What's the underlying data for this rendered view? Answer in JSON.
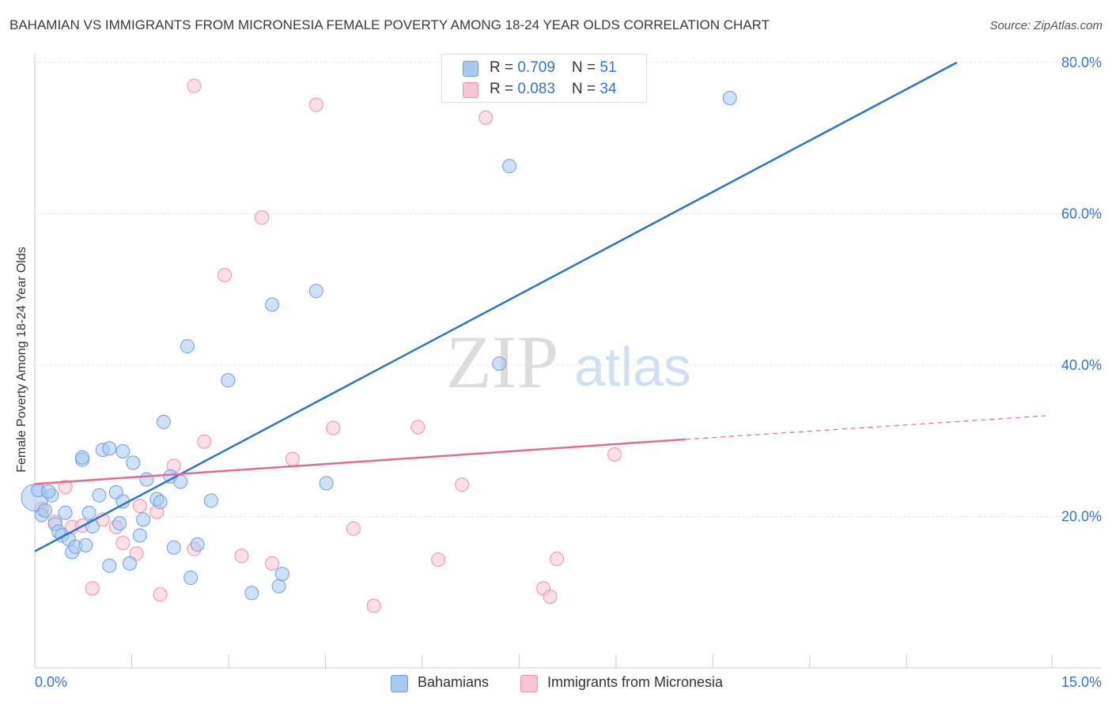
{
  "title": "BAHAMIAN VS IMMIGRANTS FROM MICRONESIA FEMALE POVERTY AMONG 18-24 YEAR OLDS CORRELATION CHART",
  "source": "Source: ZipAtlas.com",
  "watermark": {
    "zip": "ZIP",
    "atlas": "atlas"
  },
  "legend_top": {
    "rows": [
      {
        "r_label": "R = ",
        "r_value": "0.709",
        "n_label": "N = ",
        "n_value": "51",
        "color": "#a9c8f0",
        "border": "#6b9fe0"
      },
      {
        "r_label": "R = ",
        "r_value": "0.083",
        "n_label": "N = ",
        "n_value": "34",
        "color": "#f9c4d4",
        "border": "#ec8fb0"
      }
    ]
  },
  "legend_bottom": [
    {
      "label": "Bahamians",
      "color": "#a9c8f0",
      "border": "#6b9fe0"
    },
    {
      "label": "Immigrants from Micronesia",
      "color": "#f9c4d4",
      "border": "#ec8fb0"
    }
  ],
  "chart_data": {
    "type": "scatter",
    "xlabel": "",
    "ylabel": "Female Poverty Among 18-24 Year Olds",
    "xlim": [
      0,
      15
    ],
    "ylim": [
      0,
      80
    ],
    "x_tick_labels": [
      {
        "value": 0,
        "label": "0.0%"
      },
      {
        "value": 15,
        "label": "15.0%"
      }
    ],
    "x_minor_ticks": [
      1.429,
      2.857,
      4.286,
      5.714,
      7.143,
      8.571,
      10.0,
      11.429,
      12.857
    ],
    "y_ticks": [
      {
        "value": 20,
        "label": "20.0%"
      },
      {
        "value": 40,
        "label": "40.0%"
      },
      {
        "value": 60,
        "label": "60.0%"
      },
      {
        "value": 80,
        "label": "80.0%"
      }
    ],
    "grid": true,
    "series": [
      {
        "name": "Bahamians",
        "color": "#a9c8f0",
        "stroke": "#6b9fe0",
        "trend": {
          "x0": 0,
          "y0": 15.4,
          "x1": 13.6,
          "y1": 80,
          "color": "#2b72cc",
          "dashed_extension": false
        },
        "points": [
          [
            0.0,
            22.5
          ],
          [
            0.1,
            20.2
          ],
          [
            0.15,
            20.8
          ],
          [
            0.25,
            22.8
          ],
          [
            0.3,
            19.0
          ],
          [
            0.35,
            18.0
          ],
          [
            0.4,
            17.5
          ],
          [
            0.45,
            20.5
          ],
          [
            0.5,
            17.0
          ],
          [
            0.55,
            15.3
          ],
          [
            0.6,
            16.0
          ],
          [
            0.7,
            27.5
          ],
          [
            0.75,
            16.2
          ],
          [
            0.8,
            20.5
          ],
          [
            0.85,
            18.7
          ],
          [
            0.95,
            22.8
          ],
          [
            1.0,
            28.8
          ],
          [
            1.1,
            13.5
          ],
          [
            1.2,
            23.2
          ],
          [
            1.25,
            19.1
          ],
          [
            1.3,
            22.0
          ],
          [
            1.3,
            28.6
          ],
          [
            1.4,
            13.8
          ],
          [
            1.45,
            27.1
          ],
          [
            1.55,
            17.5
          ],
          [
            1.6,
            19.6
          ],
          [
            1.65,
            24.9
          ],
          [
            1.8,
            22.3
          ],
          [
            1.85,
            21.9
          ],
          [
            1.9,
            32.5
          ],
          [
            2.0,
            25.3
          ],
          [
            2.05,
            15.9
          ],
          [
            2.15,
            24.6
          ],
          [
            2.25,
            42.5
          ],
          [
            2.3,
            11.9
          ],
          [
            2.4,
            16.3
          ],
          [
            2.6,
            22.1
          ],
          [
            2.85,
            38.0
          ],
          [
            3.2,
            9.9
          ],
          [
            3.5,
            48.0
          ],
          [
            3.6,
            10.8
          ],
          [
            3.65,
            12.4
          ],
          [
            4.15,
            49.8
          ],
          [
            4.3,
            24.4
          ],
          [
            7.0,
            66.3
          ],
          [
            10.25,
            75.3
          ],
          [
            6.85,
            40.2
          ],
          [
            0.05,
            23.5
          ],
          [
            0.7,
            27.8
          ],
          [
            1.1,
            29.0
          ],
          [
            0.2,
            23.3
          ]
        ],
        "sizes": [
          34,
          12,
          12,
          12,
          12,
          12,
          12,
          12,
          12,
          12,
          12,
          12,
          12,
          12,
          12,
          12,
          12,
          12,
          12,
          12,
          12,
          12,
          12,
          12,
          12,
          12,
          12,
          12,
          12,
          12,
          12,
          12,
          12,
          12,
          12,
          12,
          12,
          12,
          12,
          12,
          12,
          12,
          12,
          12,
          12,
          12,
          12,
          12,
          12,
          12,
          12
        ]
      },
      {
        "name": "Immigrants from Micronesia",
        "color": "#f9c4d4",
        "stroke": "#ec8fb0",
        "trend": {
          "x0": 0,
          "y0": 24.3,
          "x1": 9.6,
          "y1": 30.2,
          "x2": 14.9,
          "y2": 33.3,
          "color": "#e26b94",
          "dashed_extension": true
        },
        "points": [
          [
            0.1,
            21.0
          ],
          [
            0.3,
            19.3
          ],
          [
            0.45,
            23.9
          ],
          [
            0.55,
            18.6
          ],
          [
            0.7,
            18.8
          ],
          [
            0.85,
            10.5
          ],
          [
            1.0,
            19.6
          ],
          [
            1.2,
            18.6
          ],
          [
            1.3,
            16.5
          ],
          [
            1.5,
            15.1
          ],
          [
            1.55,
            21.4
          ],
          [
            1.8,
            20.6
          ],
          [
            1.85,
            9.7
          ],
          [
            2.05,
            26.7
          ],
          [
            2.35,
            15.7
          ],
          [
            2.5,
            29.9
          ],
          [
            2.8,
            51.9
          ],
          [
            3.05,
            14.8
          ],
          [
            3.35,
            59.5
          ],
          [
            3.5,
            13.8
          ],
          [
            3.8,
            27.6
          ],
          [
            4.15,
            74.4
          ],
          [
            4.4,
            31.7
          ],
          [
            4.7,
            18.4
          ],
          [
            5.0,
            8.2
          ],
          [
            5.65,
            31.8
          ],
          [
            5.95,
            14.3
          ],
          [
            6.3,
            24.2
          ],
          [
            6.65,
            72.7
          ],
          [
            7.5,
            10.5
          ],
          [
            7.6,
            9.4
          ],
          [
            7.7,
            14.4
          ],
          [
            8.55,
            28.2
          ],
          [
            2.35,
            76.9
          ]
        ],
        "sizes": [
          12,
          12,
          12,
          12,
          12,
          12,
          12,
          12,
          12,
          12,
          12,
          12,
          12,
          12,
          12,
          12,
          12,
          12,
          12,
          12,
          12,
          12,
          12,
          12,
          12,
          12,
          12,
          12,
          12,
          12,
          12,
          12,
          12,
          12
        ]
      }
    ]
  }
}
